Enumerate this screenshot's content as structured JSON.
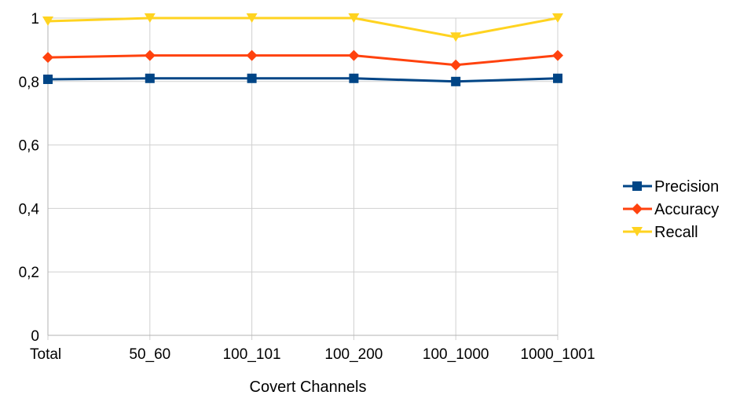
{
  "chart_data": {
    "type": "line",
    "title": "",
    "xlabel": "Covert Channels",
    "ylabel": "",
    "categories": [
      "Total",
      "50_60",
      "100_101",
      "100_200",
      "100_1000",
      "1000_1001"
    ],
    "ylim": [
      0,
      1
    ],
    "yticks": [
      0,
      0.2,
      0.4,
      0.6,
      0.8,
      1
    ],
    "ytick_labels": [
      "0",
      "0,2",
      "0,4",
      "0,6",
      "0,8",
      "1"
    ],
    "grid": true,
    "legend_position": "right",
    "series": [
      {
        "name": "Precision",
        "values": [
          0.807,
          0.81,
          0.81,
          0.81,
          0.8,
          0.81
        ],
        "color": "#004586",
        "marker": "square"
      },
      {
        "name": "Accuracy",
        "values": [
          0.876,
          0.882,
          0.882,
          0.882,
          0.852,
          0.882
        ],
        "color": "#ff420e",
        "marker": "diamond"
      },
      {
        "name": "Recall",
        "values": [
          0.99,
          1.0,
          1.0,
          1.0,
          0.94,
          1.0
        ],
        "color": "#ffd320",
        "marker": "triangle-down"
      }
    ]
  }
}
